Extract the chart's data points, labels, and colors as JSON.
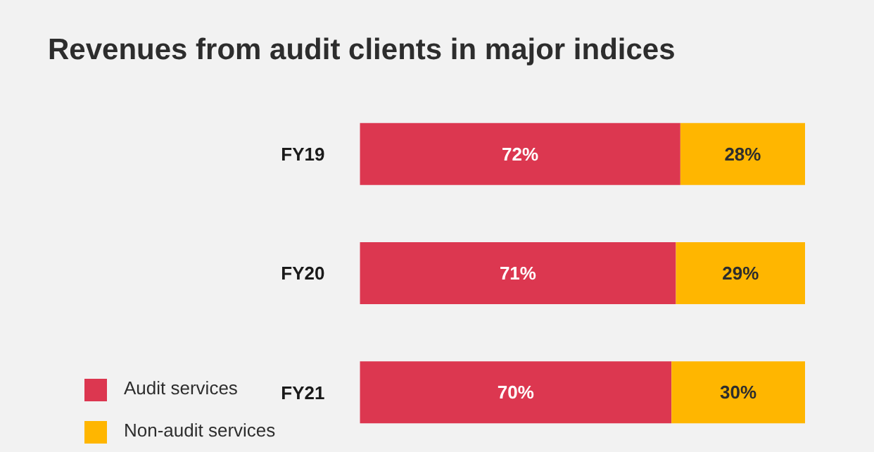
{
  "chart_data": {
    "type": "bar",
    "title": "Revenues from audit clients in major indices",
    "orientation": "horizontal",
    "stacked": true,
    "categories": [
      "FY19",
      "FY20",
      "FY21"
    ],
    "xlim": [
      0,
      100
    ],
    "tick_labels": "y",
    "legend": "bottom left",
    "grid": false,
    "series": [
      {
        "name": "Audit services",
        "color": "#dc3750",
        "values": [
          72,
          71,
          70
        ],
        "value_labels": [
          "72%",
          "71%",
          "70%"
        ]
      },
      {
        "name": "Non-audit services",
        "color": "#ffb600",
        "values": [
          28,
          29,
          30
        ],
        "value_labels": [
          "28%",
          "29%",
          "30%"
        ]
      }
    ]
  }
}
